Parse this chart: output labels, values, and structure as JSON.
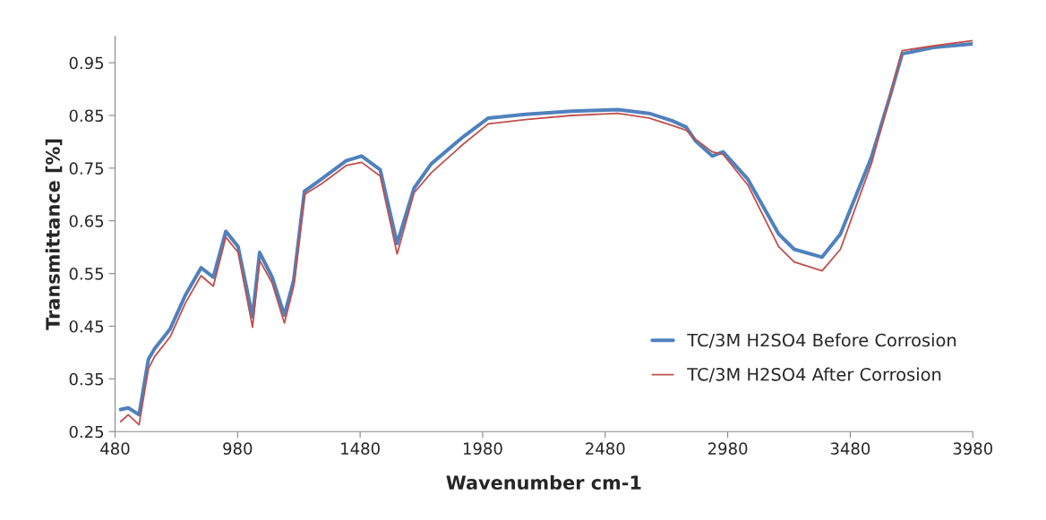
{
  "chart_data": {
    "type": "line",
    "xlabel": "Wavenumber cm-1",
    "ylabel": "Transmittance [%]",
    "xlim": [
      480,
      3980
    ],
    "xticks": [
      480,
      980,
      1480,
      1980,
      2480,
      2980,
      3480,
      3980
    ],
    "ylim": [
      0.25,
      1.0
    ],
    "yticks": [
      0.25,
      0.35,
      0.45,
      0.55,
      0.65,
      0.75,
      0.85,
      0.95
    ],
    "grid": false,
    "legend": "bottom right",
    "marker": "none",
    "line_style": "solid",
    "series": [
      {
        "name": "TC/3M H2SO4 Before Corrosion",
        "color": "#4f81bd",
        "x": [
          503,
          534,
          578,
          616,
          641,
          705,
          767,
          831,
          881,
          932,
          982,
          1041,
          1070,
          1121,
          1171,
          1209,
          1253,
          1322,
          1423,
          1486,
          1562,
          1631,
          1700,
          1770,
          1902,
          2003,
          2154,
          2343,
          2532,
          2659,
          2753,
          2810,
          2848,
          2917,
          2961,
          3062,
          3188,
          3251,
          3365,
          3440,
          3566,
          3642,
          3692,
          3819,
          3980
        ],
        "values": [
          0.292,
          0.295,
          0.282,
          0.387,
          0.407,
          0.445,
          0.509,
          0.561,
          0.543,
          0.63,
          0.601,
          0.468,
          0.59,
          0.543,
          0.471,
          0.537,
          0.706,
          0.729,
          0.764,
          0.773,
          0.747,
          0.607,
          0.712,
          0.758,
          0.81,
          0.845,
          0.852,
          0.858,
          0.861,
          0.854,
          0.84,
          0.828,
          0.802,
          0.773,
          0.781,
          0.729,
          0.625,
          0.596,
          0.581,
          0.625,
          0.77,
          0.886,
          0.967,
          0.979,
          0.986
        ]
      },
      {
        "name": "TC/3M H2SO4 After Corrosion",
        "color": "#c0504d",
        "x": [
          503,
          534,
          578,
          616,
          641,
          705,
          767,
          831,
          881,
          932,
          982,
          1041,
          1070,
          1121,
          1171,
          1209,
          1253,
          1322,
          1423,
          1486,
          1562,
          1631,
          1700,
          1770,
          1902,
          2003,
          2154,
          2343,
          2532,
          2659,
          2753,
          2810,
          2848,
          2917,
          2961,
          3062,
          3188,
          3251,
          3365,
          3440,
          3566,
          3642,
          3692,
          3819,
          3980
        ],
        "values": [
          0.269,
          0.282,
          0.263,
          0.369,
          0.392,
          0.43,
          0.494,
          0.546,
          0.526,
          0.619,
          0.59,
          0.448,
          0.575,
          0.532,
          0.456,
          0.526,
          0.7,
          0.72,
          0.755,
          0.761,
          0.735,
          0.587,
          0.703,
          0.741,
          0.796,
          0.834,
          0.842,
          0.85,
          0.854,
          0.845,
          0.831,
          0.822,
          0.805,
          0.781,
          0.776,
          0.718,
          0.601,
          0.572,
          0.555,
          0.596,
          0.758,
          0.886,
          0.973,
          0.982,
          0.992
        ]
      }
    ]
  }
}
